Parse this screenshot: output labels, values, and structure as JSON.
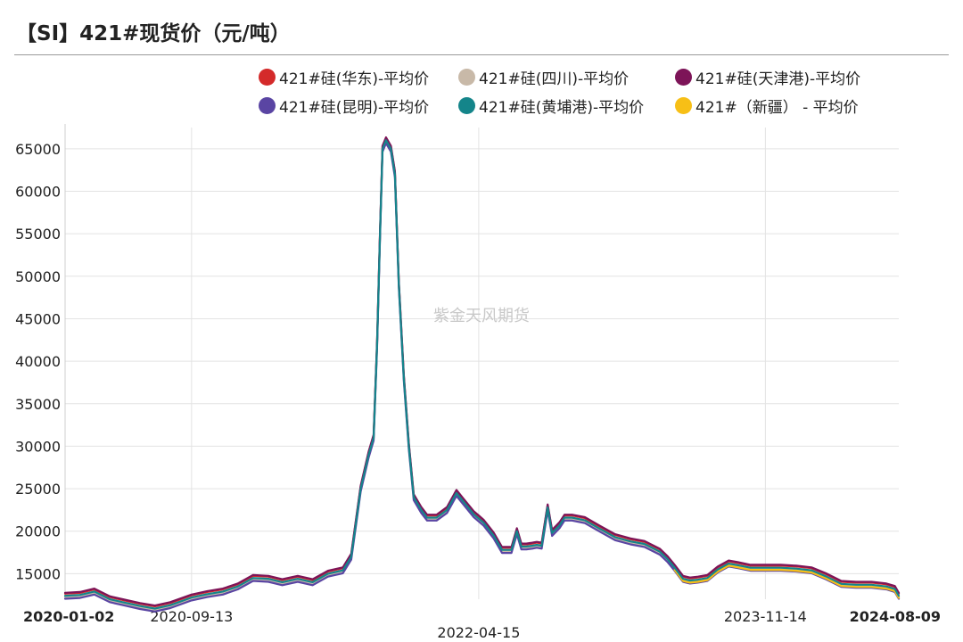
{
  "title": "【SI】421#现货价（元/吨）",
  "watermark": "紫金天风期货",
  "chart_data": {
    "type": "line",
    "title": "【SI】421#现货价（元/吨）",
    "xlabel": "",
    "ylabel": "",
    "ylim": [
      12000,
      67500
    ],
    "yticks": [
      15000,
      20000,
      25000,
      30000,
      35000,
      40000,
      45000,
      50000,
      55000,
      60000,
      65000
    ],
    "xlim": [
      "2020-01-02",
      "2024-08-09"
    ],
    "xticks": [
      {
        "date": "2020-01-02",
        "label": "2020-01-02",
        "bold": true
      },
      {
        "date": "2020-09-13",
        "label": "2020-09-13",
        "bold": false
      },
      {
        "date": "2022-04-15",
        "label": "2022-04-15",
        "bold": false
      },
      {
        "date": "2023-11-14",
        "label": "2023-11-14",
        "bold": false
      },
      {
        "date": "2024-08-09",
        "label": "2024-08-09",
        "bold": true
      }
    ],
    "grid": true,
    "legend_position": "top",
    "base_series": {
      "x": [
        "2020-01-02",
        "2020-02-01",
        "2020-03-01",
        "2020-04-01",
        "2020-05-01",
        "2020-06-01",
        "2020-07-01",
        "2020-08-01",
        "2020-09-13",
        "2020-10-15",
        "2020-11-15",
        "2020-12-15",
        "2021-01-15",
        "2021-02-15",
        "2021-03-15",
        "2021-04-15",
        "2021-05-15",
        "2021-06-15",
        "2021-07-15",
        "2021-08-01",
        "2021-08-20",
        "2021-09-05",
        "2021-09-15",
        "2021-09-22",
        "2021-09-28",
        "2021-10-03",
        "2021-10-10",
        "2021-10-20",
        "2021-10-28",
        "2021-11-05",
        "2021-11-15",
        "2021-11-25",
        "2021-12-05",
        "2021-12-20",
        "2022-01-01",
        "2022-01-20",
        "2022-02-10",
        "2022-03-01",
        "2022-03-15",
        "2022-04-05",
        "2022-04-15",
        "2022-04-25",
        "2022-05-15",
        "2022-06-01",
        "2022-06-20",
        "2022-07-01",
        "2022-07-10",
        "2022-07-20",
        "2022-08-01",
        "2022-08-10",
        "2022-08-20",
        "2022-09-01",
        "2022-09-10",
        "2022-09-25",
        "2022-10-05",
        "2022-10-20",
        "2022-11-15",
        "2022-12-15",
        "2023-01-15",
        "2023-02-15",
        "2023-03-15",
        "2023-04-15",
        "2023-05-01",
        "2023-05-15",
        "2023-06-01",
        "2023-06-15",
        "2023-07-01",
        "2023-07-20",
        "2023-08-10",
        "2023-09-01",
        "2023-09-20",
        "2023-10-15",
        "2023-11-14",
        "2023-12-15",
        "2024-01-15",
        "2024-02-15",
        "2024-03-15",
        "2024-04-15",
        "2024-05-15",
        "2024-06-15",
        "2024-07-15",
        "2024-08-01",
        "2024-08-09"
      ],
      "y": [
        12400,
        12500,
        12900,
        12000,
        11600,
        11200,
        10900,
        11300,
        12200,
        12600,
        12900,
        13500,
        14500,
        14400,
        14000,
        14400,
        14000,
        15000,
        15400,
        17000,
        25000,
        29000,
        31000,
        42000,
        55000,
        65000,
        66000,
        65000,
        62000,
        49000,
        38000,
        30000,
        24000,
        22500,
        21600,
        21600,
        22500,
        24500,
        23500,
        22000,
        21500,
        21000,
        19500,
        17800,
        17800,
        20000,
        18200,
        18200,
        18300,
        18400,
        18300,
        22800,
        19800,
        20700,
        21600,
        21600,
        21300,
        20300,
        19300,
        18800,
        18500,
        17600,
        16700,
        15700,
        14400,
        14200,
        14300,
        14500,
        15500,
        16200,
        16000,
        15700,
        15700,
        15700,
        15600,
        15400,
        14700,
        13800,
        13700,
        13700,
        13500,
        13200,
        12400
      ]
    },
    "series": [
      {
        "name": "421#硅(华东)-平均价",
        "color": "#d42a2a",
        "offset": 250
      },
      {
        "name": "421#硅(四川)-平均价",
        "color": "#c8b9a8",
        "offset": -150
      },
      {
        "name": "421#硅(天津港)-平均价",
        "color": "#7d1458",
        "offset": 350
      },
      {
        "name": "421#硅(昆明)-平均价",
        "color": "#5a45a3",
        "offset": -350
      },
      {
        "name": "421#硅(黄埔港)-平均价",
        "color": "#14858a",
        "offset": 0
      },
      {
        "name": "421#（新疆） - 平均价",
        "color": "#f7bf16",
        "offset": -250,
        "start": "2023-05-15"
      }
    ]
  }
}
